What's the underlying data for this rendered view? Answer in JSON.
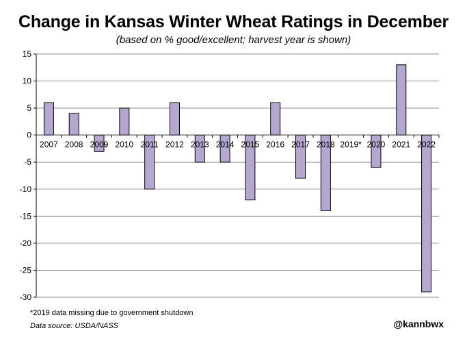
{
  "chart_data": {
    "type": "bar",
    "title": "Change in Kansas Winter Wheat Ratings in December",
    "subtitle": "(based on % good/excellent; harvest year is shown)",
    "xlabel": "",
    "ylabel": "",
    "categories": [
      "2007",
      "2008",
      "2009",
      "2010",
      "2011",
      "2012",
      "2013",
      "2014",
      "2015",
      "2016",
      "2017",
      "2018",
      "2019*",
      "2020",
      "2021",
      "2022"
    ],
    "values": [
      6,
      4,
      -3,
      5,
      -10,
      6,
      -5,
      -5,
      -12,
      6,
      -8,
      -14,
      null,
      -6,
      13,
      -29
    ],
    "ylim": [
      -30,
      15
    ],
    "yticks": [
      15,
      10,
      5,
      0,
      -5,
      -10,
      -15,
      -20,
      -25,
      -30
    ],
    "grid": true,
    "legend": "none",
    "bar_color": "#b4a7d0",
    "bar_edge_color": "#000000",
    "footnote": "*2019 data missing due to government shutdown",
    "source": "Data source: USDA/NASS",
    "handle": "@kannbwx"
  }
}
